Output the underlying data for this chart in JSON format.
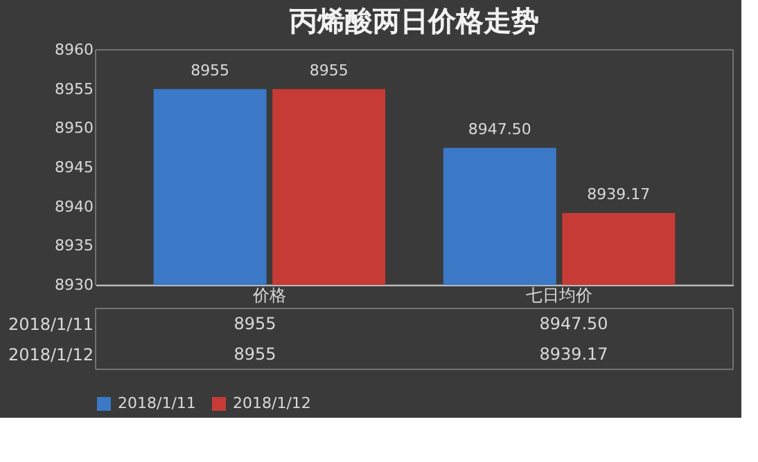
{
  "chart_data": {
    "type": "bar",
    "title": "丙烯酸两日价格走势",
    "categories": [
      "价格",
      "七日均价"
    ],
    "series": [
      {
        "name": "2018/1/11",
        "color": "#3b78c6",
        "values": [
          8955,
          8947.5
        ],
        "value_labels": [
          "8955",
          "8947.50"
        ]
      },
      {
        "name": "2018/1/12",
        "color": "#c63b36",
        "values": [
          8955,
          8939.17
        ],
        "value_labels": [
          "8955",
          "8939.17"
        ]
      }
    ],
    "ylim": [
      8930,
      8960
    ],
    "yticks": [
      8930,
      8935,
      8940,
      8945,
      8950,
      8955,
      8960
    ],
    "grid": false,
    "legend": "bottom"
  }
}
